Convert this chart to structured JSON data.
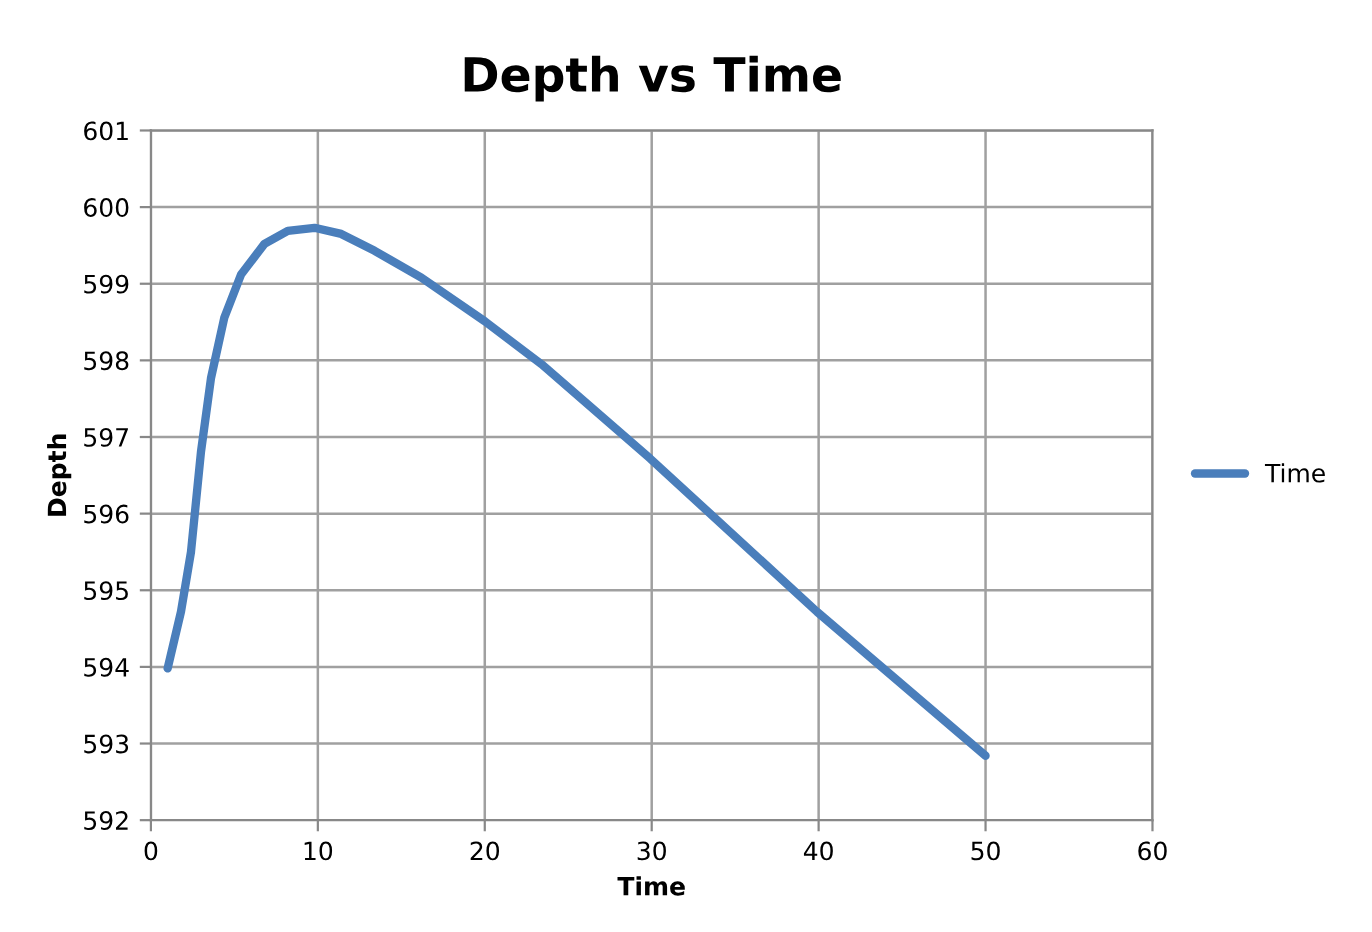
{
  "chart_data": {
    "type": "line",
    "title": "Depth vs Time",
    "xlabel": "Time",
    "ylabel": "Depth",
    "xlim": [
      0,
      60
    ],
    "xticks": [
      0,
      10,
      20,
      30,
      40,
      50,
      60
    ],
    "ylim": [
      592,
      601
    ],
    "yticks": [
      592,
      593,
      594,
      595,
      596,
      597,
      598,
      599,
      600,
      601
    ],
    "grid": true,
    "legend": "right",
    "marker": "none",
    "line_style": "solid",
    "series": [
      {
        "name": "Time",
        "color": "#4a7ebb",
        "x": [
          1.0,
          1.8,
          2.4,
          3.0,
          3.6,
          4.4,
          5.4,
          6.8,
          8.2,
          9.8,
          11.4,
          13.4,
          16.2,
          20,
          23.4,
          29.9,
          39.9,
          50
        ],
        "values": [
          593.98,
          594.72,
          595.5,
          596.81,
          597.77,
          598.56,
          599.12,
          599.52,
          599.69,
          599.73,
          599.65,
          599.43,
          599.08,
          598.51,
          597.95,
          596.72,
          594.72,
          592.84
        ]
      }
    ]
  }
}
